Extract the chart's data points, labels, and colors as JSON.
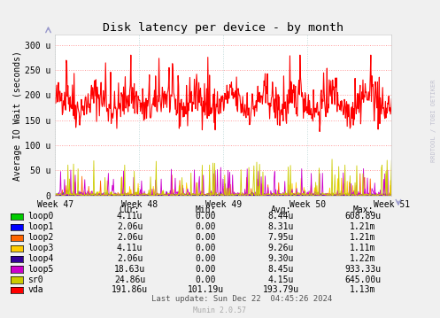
{
  "title": "Disk latency per device - by month",
  "ylabel": "Average IO Wait (seconds)",
  "background_color": "#F0F0F0",
  "plot_bg_color": "#FFFFFF",
  "grid_color": "#FF9999",
  "x_labels": [
    "Week 47",
    "Week 48",
    "Week 49",
    "Week 50",
    "Week 51"
  ],
  "y_tick_labels": [
    "0",
    "50 u",
    "100 u",
    "150 u",
    "200 u",
    "250 u",
    "300 u"
  ],
  "ylim": [
    0,
    320
  ],
  "legend_colors": [
    "#00CC00",
    "#0000FF",
    "#FF6600",
    "#FFCC00",
    "#330099",
    "#CC00CC",
    "#CCCC00",
    "#FF0000"
  ],
  "table_headers": [
    "Cur:",
    "Min:",
    "Avg:",
    "Max:"
  ],
  "table_rows": [
    [
      "loop0",
      "4.11u",
      "0.00",
      "8.44u",
      "608.89u"
    ],
    [
      "loop1",
      "2.06u",
      "0.00",
      "8.31u",
      "1.21m"
    ],
    [
      "loop2",
      "2.06u",
      "0.00",
      "7.95u",
      "1.21m"
    ],
    [
      "loop3",
      "4.11u",
      "0.00",
      "9.26u",
      "1.11m"
    ],
    [
      "loop4",
      "2.06u",
      "0.00",
      "9.30u",
      "1.22m"
    ],
    [
      "loop5",
      "18.63u",
      "0.00",
      "8.45u",
      "933.33u"
    ],
    [
      "sr0",
      "24.86u",
      "0.00",
      "4.15u",
      "645.00u"
    ],
    [
      "vda",
      "191.86u",
      "101.19u",
      "193.79u",
      "1.13m"
    ]
  ],
  "last_update": "Last update: Sun Dec 22  04:45:26 2024",
  "munin_version": "Munin 2.0.57",
  "rrdtool_label": "RRDTOOL / TOBI OETIKER",
  "n_points": 600
}
